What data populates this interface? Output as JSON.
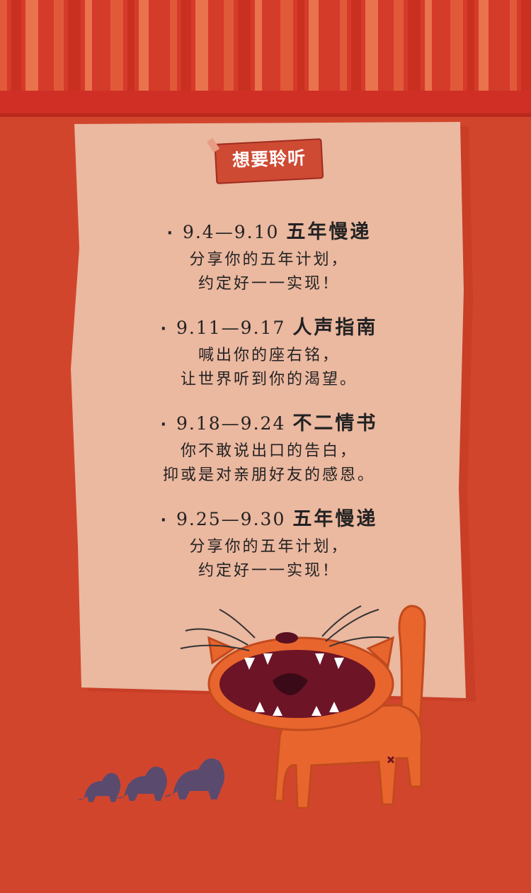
{
  "title": "想要聆听",
  "schedule": [
    {
      "bullet": "·",
      "date": "9.4—9.10",
      "topic": "五年慢递",
      "lines": [
        "分享你的五年计划，",
        "约定好一一实现！"
      ]
    },
    {
      "bullet": "·",
      "date": "9.11—9.17",
      "topic": "人声指南",
      "lines": [
        "喊出你的座右铭，",
        "让世界听到你的渴望。"
      ]
    },
    {
      "bullet": "·",
      "date": "9.18—9.24",
      "topic": "不二情书",
      "lines": [
        "你不敢说出口的告白，",
        "抑或是对亲朋好友的感恩。"
      ]
    },
    {
      "bullet": "·",
      "date": "9.25—9.30",
      "topic": "五年慢递",
      "lines": [
        "分享你的五年计划，",
        "约定好一一实现！"
      ]
    }
  ],
  "colors": {
    "background": "#d2452d",
    "paper": "#ebb8a0",
    "tag": "#cf4a33",
    "cat": "#e8662d",
    "lions": "#5a4a6e"
  },
  "icons": {
    "tag": "tape-label-icon",
    "cat": "screaming-cat-illustration",
    "lions": "lion-silhouette-icon"
  }
}
